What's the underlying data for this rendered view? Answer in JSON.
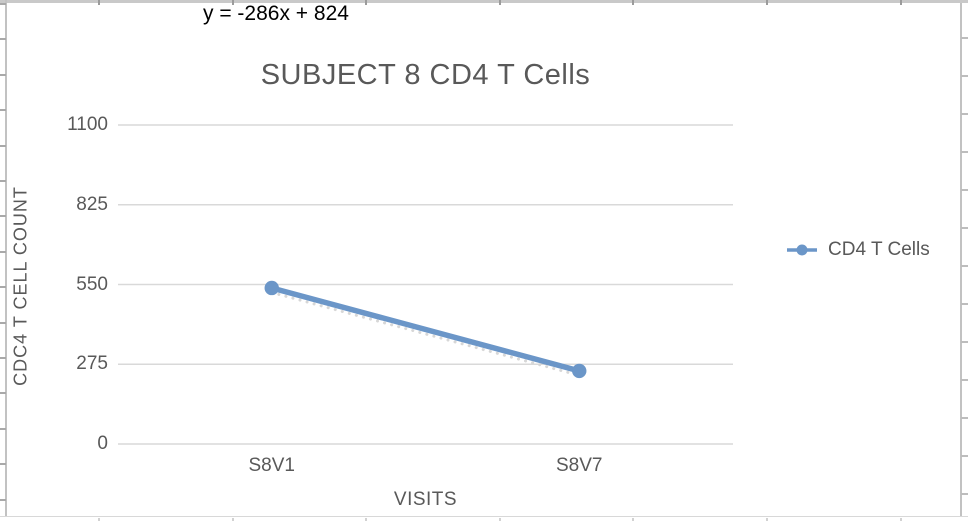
{
  "chart_data": {
    "type": "line",
    "title": "SUBJECT 8 CD4 T Cells",
    "categories": [
      "S8V1",
      "S8V7"
    ],
    "series": [
      {
        "name": "CD4 T Cells",
        "values": [
          538,
          252
        ],
        "color": "#6B96C8",
        "marker": "circle"
      }
    ],
    "trendline": {
      "equation": "y = -286x + 824",
      "slope": -286,
      "intercept": 824,
      "style": "dotted",
      "color": "#D7D7D7"
    },
    "xlabel": "VISITS",
    "ylabel": "CDC4 T CELL COUNT",
    "ylim": [
      0,
      1100
    ],
    "yticks": [
      0,
      275,
      550,
      825,
      1100
    ],
    "grid": true,
    "legend_position": "right",
    "text_color": "#595959",
    "equation_color": "#000000",
    "gridline_color": "#D9D9D9",
    "background": "#FFFFFF"
  }
}
